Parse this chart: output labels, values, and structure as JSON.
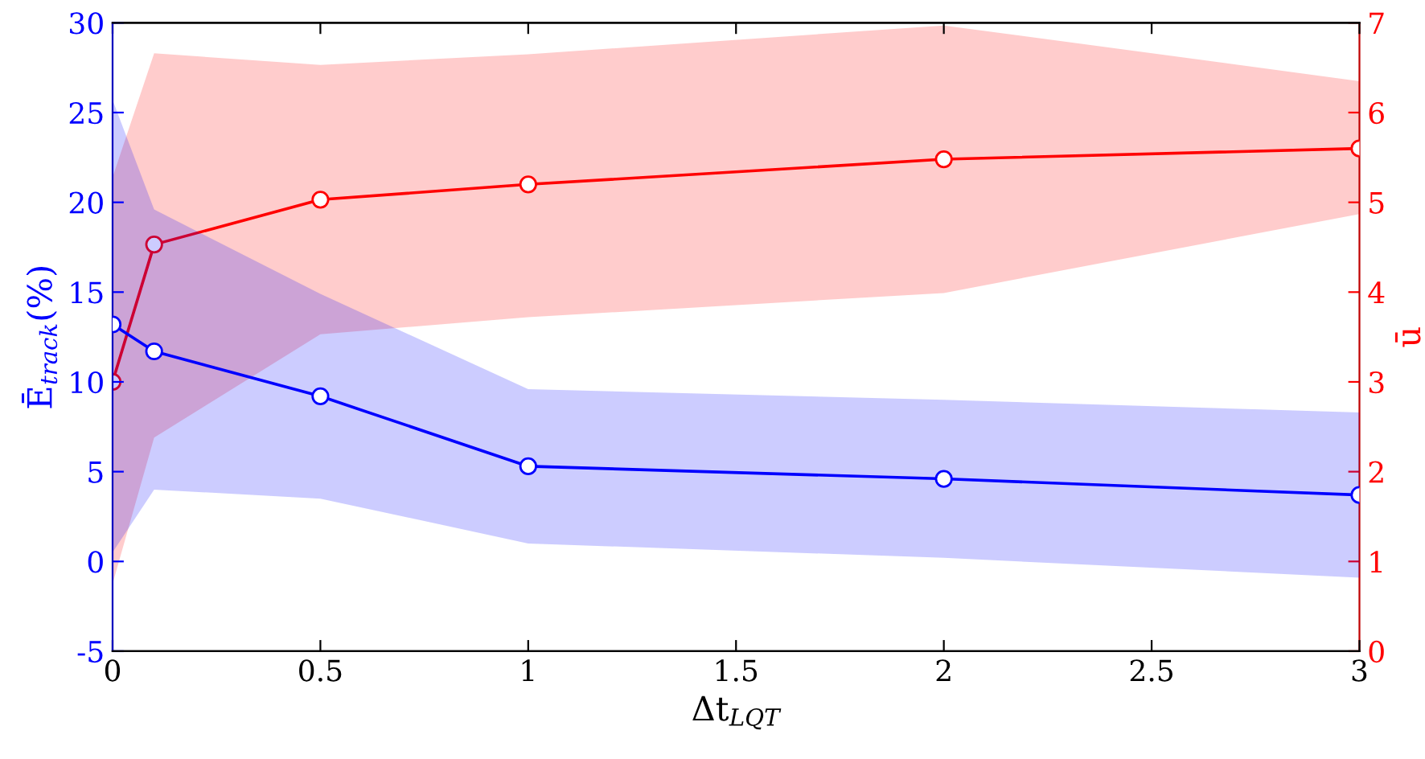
{
  "chart_data": {
    "type": "line",
    "xlabel": "Δt$_{LQT}$",
    "ylabel": "Ē$_{track}$(%)",
    "y2label": "ū",
    "x": [
      0,
      0.1,
      0.5,
      1,
      2,
      3
    ],
    "series": [
      {
        "color": "#0000ff",
        "values": [
          13.2,
          11.7,
          9.2,
          5.3,
          4.6,
          3.7
        ],
        "lower": [
          0.5,
          4.0,
          3.5,
          1.0,
          0.2,
          -0.9
        ],
        "upper": [
          25.7,
          19.6,
          14.9,
          9.6,
          9.0,
          8.3
        ]
      },
      {
        "color": "#ff0000",
        "axis": "y2",
        "values": [
          3.0,
          4.53,
          5.03,
          5.2,
          5.48,
          5.6
        ],
        "lower": [
          0.75,
          2.38,
          3.53,
          3.72,
          3.99,
          4.87
        ],
        "upper": [
          5.28,
          6.66,
          6.53,
          6.65,
          6.97,
          6.35
        ]
      }
    ],
    "xlim": [
      0,
      3
    ],
    "xticks": [
      0,
      0.5,
      1,
      1.5,
      2,
      2.5,
      3
    ],
    "ylim": [
      -5,
      30
    ],
    "yticks": [
      -5,
      0,
      5,
      10,
      15,
      20,
      25,
      30
    ],
    "y2lim": [
      0,
      7
    ],
    "y2ticks": [
      0,
      1,
      2,
      3,
      4,
      5,
      6,
      7
    ],
    "marker": "circle",
    "line_style": "solid",
    "grid": false
  }
}
